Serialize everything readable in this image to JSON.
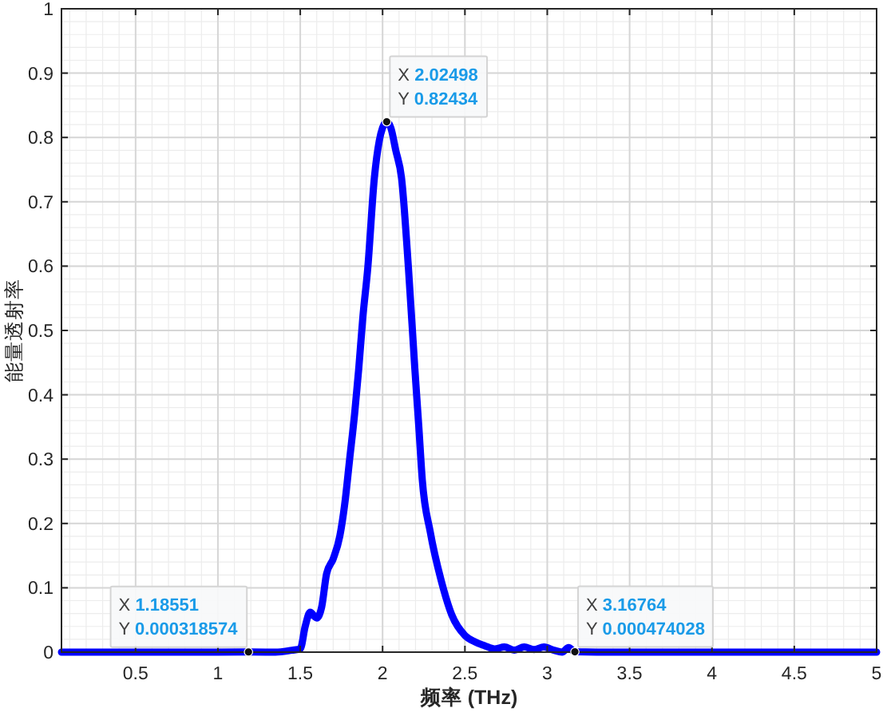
{
  "chart_data": {
    "type": "line",
    "xlabel": "频率 (THz)",
    "ylabel": "能量透射率",
    "x": [
      0.05,
      0.5,
      1.0,
      1.18551,
      1.35,
      1.45,
      1.5,
      1.53,
      1.56,
      1.6,
      1.63,
      1.66,
      1.7,
      1.74,
      1.77,
      1.8,
      1.83,
      1.855,
      1.88,
      1.91,
      1.95,
      1.98,
      2.0,
      2.02498,
      2.05,
      2.08,
      2.115,
      2.157,
      2.196,
      2.22,
      2.241,
      2.29,
      2.355,
      2.42,
      2.5,
      2.56,
      2.62,
      2.68,
      2.74,
      2.8,
      2.86,
      2.92,
      2.98,
      3.04,
      3.09,
      3.13,
      3.16764,
      3.3,
      3.6,
      4.0,
      4.5,
      5.0
    ],
    "values": [
      0,
      0,
      0,
      0.000318574,
      0,
      0.003,
      0.005,
      0.04,
      0.062,
      0.053,
      0.07,
      0.122,
      0.145,
      0.18,
      0.23,
      0.3,
      0.37,
      0.44,
      0.52,
      0.597,
      0.737,
      0.795,
      0.815,
      0.82434,
      0.815,
      0.78,
      0.737,
      0.597,
      0.44,
      0.35,
      0.268,
      0.186,
      0.112,
      0.058,
      0.026,
      0.016,
      0.01,
      0.005,
      0.008,
      0.003,
      0.008,
      0.004,
      0.008,
      0.003,
      0,
      0.007,
      0.000474028,
      0,
      0,
      0,
      0,
      0
    ],
    "color": "#0000ff",
    "line_style": "solid",
    "grid": true,
    "xlim": [
      0.05,
      5
    ],
    "xticks": [
      0.5,
      1,
      1.5,
      2,
      2.5,
      3,
      3.5,
      4,
      4.5,
      5
    ],
    "ylim": [
      0,
      1
    ],
    "yticks": [
      0,
      0.1,
      0.2,
      0.3,
      0.4,
      0.5,
      0.6,
      0.7,
      0.8,
      0.9,
      1
    ],
    "annotations": [
      {
        "text": "X 2.02498\nY 0.82434",
        "x": 2.02498,
        "y": 0.82434
      },
      {
        "text": "X 1.18551\nY 0.000318574",
        "x": 1.18551,
        "y": 0.000318574
      },
      {
        "text": "X 3.16764\nY 0.000474028",
        "x": 3.16764,
        "y": 0.000474028
      }
    ]
  }
}
